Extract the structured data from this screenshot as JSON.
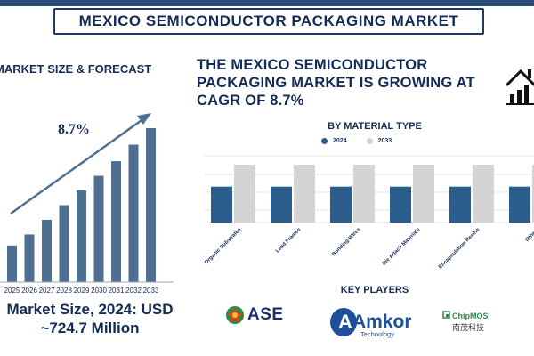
{
  "title": "MEXICO SEMICONDUCTOR PACKAGING MARKET",
  "left_heading": "MARKET SIZE & FORECAST",
  "cagr_label": "8.7%",
  "market_size_line1": "Market Size, 2024: USD",
  "market_size_line2": "~724.7 Million",
  "headline": "THE MEXICO SEMICONDUCTOR PACKAGING MARKET IS GROWING AT CAGR OF 8.7%",
  "material_heading": "BY MATERIAL TYPE",
  "players_heading": "KEY PLAYERS",
  "players": {
    "ase": "ASE",
    "amkor_main": "Amkor",
    "amkor_sub": "Technology",
    "chipmos_main": "ChipMOS",
    "chipmos_sub": "南茂科技"
  },
  "colors": {
    "navy": "#142c55",
    "bar_blue": "#2b5d8d",
    "bar_grey": "#d4d4d4",
    "left_bar": "#4e6f91"
  },
  "chart_data": [
    {
      "type": "bar",
      "categories": [
        "2025",
        "2026",
        "2027",
        "2028",
        "2029",
        "2030",
        "2031",
        "2032",
        "2033"
      ],
      "values": [
        1.0,
        1.3,
        1.7,
        2.1,
        2.5,
        2.9,
        3.3,
        3.75,
        4.2
      ],
      "annotation": "8.7%",
      "grid": false
    },
    {
      "type": "bar",
      "title": "BY MATERIAL TYPE",
      "categories": [
        "Organic Substrates",
        "Lead Frames",
        "Bonding Wires",
        "Die Attach Materials",
        "Encapsulation Resins",
        "Others"
      ],
      "series": [
        {
          "name": "2024",
          "values": [
            0.62,
            0.62,
            0.62,
            0.62,
            0.62,
            0.62
          ]
        },
        {
          "name": "2033",
          "values": [
            1.0,
            1.0,
            1.0,
            1.0,
            1.0,
            1.0
          ]
        }
      ],
      "legend": "top-center",
      "grid": true
    }
  ]
}
